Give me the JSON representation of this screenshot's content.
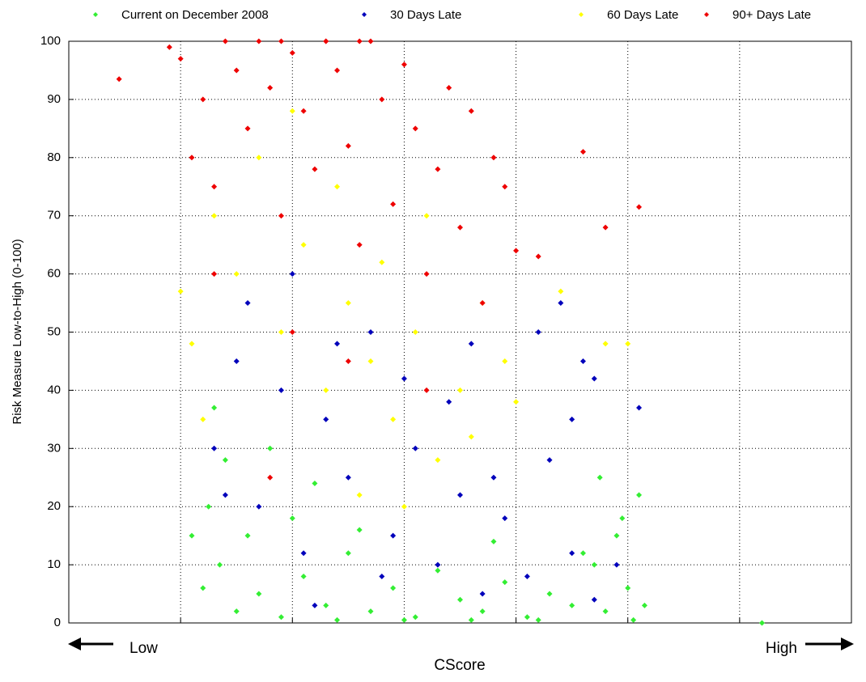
{
  "chart_data": {
    "type": "scatter",
    "x_label": "CScore",
    "y_label": "Risk Measure Low-to-High (0-100)",
    "annotations": [
      "Low",
      "High"
    ],
    "xlim": [
      0,
      7
    ],
    "xticks": [
      1,
      2,
      3,
      4,
      5,
      6
    ],
    "ylim": [
      0,
      100
    ],
    "yticks": [
      0,
      10,
      20,
      30,
      40,
      50,
      60,
      70,
      80,
      90,
      100
    ],
    "grid": true,
    "legend": "top",
    "series": [
      {
        "name": "Current on December 2008",
        "color": "#33ee33",
        "x": [
          1.5,
          1.7,
          1.9,
          2.1,
          2.3,
          2.5,
          2.7,
          2.9,
          3.1,
          3.3,
          3.5,
          3.7,
          3.9,
          4.1,
          4.3,
          4.5,
          4.7,
          4.8,
          4.9,
          5.0,
          5.1,
          5.15,
          4.75,
          4.95,
          1.3,
          1.25,
          1.4,
          1.6,
          1.8,
          2.0,
          2.2,
          1.35,
          4.6,
          3.8,
          2.6,
          1.2,
          6.2,
          2.4,
          3.0,
          3.6,
          4.2,
          5.05,
          1.1
        ],
        "values": [
          2,
          5,
          1,
          8,
          3,
          12,
          2,
          6,
          1,
          9,
          4,
          2,
          7,
          1,
          5,
          3,
          10,
          2,
          15,
          6,
          22,
          3,
          25,
          18,
          37,
          20,
          28,
          15,
          30,
          18,
          24,
          10,
          12,
          14,
          16,
          6,
          0,
          0.5,
          0.5,
          0.5,
          0.5,
          0.5,
          15
        ]
      },
      {
        "name": "30 Days Late",
        "color": "#0000bb",
        "x": [
          1.3,
          1.5,
          1.7,
          1.9,
          2.1,
          2.3,
          2.5,
          2.7,
          2.9,
          3.1,
          3.3,
          3.5,
          3.7,
          3.9,
          4.1,
          4.3,
          4.5,
          4.7,
          4.9,
          1.6,
          2.0,
          2.4,
          3.0,
          3.4,
          4.2,
          4.4,
          4.6,
          4.7,
          5.1,
          4.5,
          3.8,
          2.8,
          2.2,
          1.4,
          3.6
        ],
        "values": [
          30,
          45,
          20,
          40,
          12,
          35,
          25,
          50,
          15,
          30,
          10,
          22,
          5,
          18,
          8,
          28,
          12,
          4,
          10,
          55,
          60,
          48,
          42,
          38,
          50,
          55,
          45,
          42,
          37,
          35,
          25,
          8,
          3,
          22,
          48
        ]
      },
      {
        "name": "60 Days Late",
        "color": "#ffff00",
        "x": [
          1.0,
          1.1,
          1.3,
          1.5,
          1.7,
          1.9,
          2.1,
          2.3,
          2.5,
          2.7,
          2.9,
          3.1,
          3.3,
          3.5,
          3.7,
          3.9,
          2.0,
          2.4,
          2.8,
          3.2,
          3.6,
          4.0,
          4.8,
          5.0,
          4.4,
          1.2,
          2.6,
          3.0
        ],
        "values": [
          57,
          48,
          70,
          60,
          80,
          50,
          65,
          40,
          55,
          45,
          35,
          50,
          28,
          40,
          55,
          45,
          88,
          75,
          62,
          70,
          32,
          38,
          48,
          48,
          57,
          35,
          22,
          20
        ]
      },
      {
        "name": "90+ Days Late",
        "color": "#ee0000",
        "x": [
          0.45,
          0.9,
          1.0,
          1.1,
          1.2,
          1.3,
          1.4,
          1.5,
          1.6,
          1.7,
          1.8,
          1.9,
          2.0,
          2.1,
          2.2,
          2.3,
          2.4,
          2.5,
          2.6,
          2.7,
          2.8,
          2.9,
          3.0,
          3.1,
          3.2,
          3.3,
          3.4,
          3.5,
          3.6,
          3.7,
          3.8,
          3.9,
          4.0,
          4.6,
          4.8,
          4.2,
          5.1,
          1.3,
          2.0,
          2.5,
          3.2,
          1.8,
          2.3,
          1.9,
          2.6
        ],
        "values": [
          93.5,
          99,
          97,
          80,
          90,
          75,
          100,
          95,
          85,
          100,
          92,
          70,
          98,
          88,
          78,
          100,
          95,
          82,
          65,
          100,
          90,
          72,
          96,
          85,
          60,
          78,
          92,
          68,
          88,
          55,
          80,
          75,
          64,
          81,
          68,
          63,
          71.5,
          60,
          50,
          45,
          40,
          25,
          100,
          100,
          100
        ]
      }
    ]
  }
}
